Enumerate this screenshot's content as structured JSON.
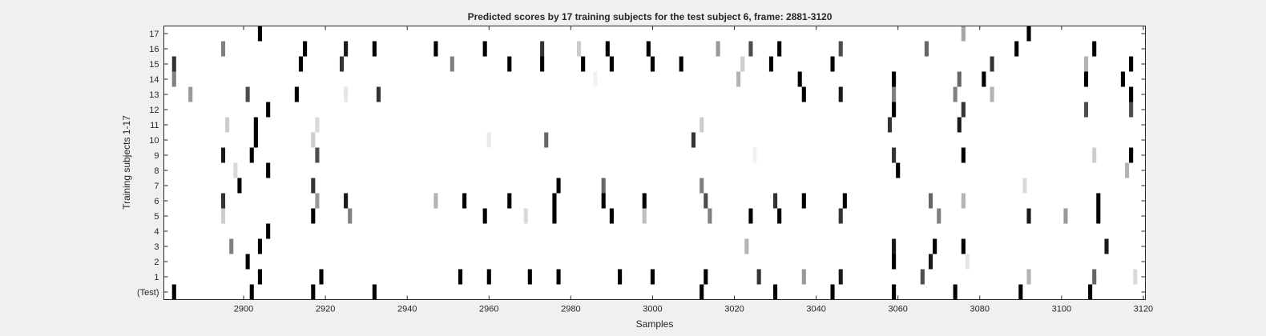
{
  "chart_data": {
    "type": "heatmap",
    "title": "Predicted scores by 17 training subjects for the test subject 6, frame: 2881-3120",
    "xlabel": "Samples",
    "ylabel": "Training subjects 1-17",
    "xlim": [
      2881,
      3120
    ],
    "x_ticks": [
      2900,
      2920,
      2940,
      2960,
      2980,
      3000,
      3020,
      3040,
      3060,
      3080,
      3100,
      3120
    ],
    "y_ticks": [
      "(Test)",
      "1",
      "2",
      "3",
      "4",
      "5",
      "6",
      "7",
      "8",
      "9",
      "10",
      "11",
      "12",
      "13",
      "14",
      "15",
      "16",
      "17"
    ],
    "colormap": "gray-inverted",
    "background_color": "#ffffff",
    "grid": false,
    "value_range": [
      0,
      1
    ],
    "rows": [
      {
        "label": "(Test)",
        "cells": [
          [
            2883,
            1.0
          ],
          [
            2902,
            1.0
          ],
          [
            2917,
            1.0
          ],
          [
            2932,
            1.0
          ],
          [
            3012,
            1.0
          ],
          [
            3030,
            1.0
          ],
          [
            3044,
            1.0
          ],
          [
            3059,
            1.0
          ],
          [
            3074,
            1.0
          ],
          [
            3090,
            1.0
          ],
          [
            3107,
            1.0
          ]
        ]
      },
      {
        "label": "1",
        "cells": [
          [
            2904,
            1.0
          ],
          [
            2919,
            1.0
          ],
          [
            2953,
            1.0
          ],
          [
            2960,
            1.0
          ],
          [
            2970,
            1.0
          ],
          [
            2977,
            1.0
          ],
          [
            2992,
            1.0
          ],
          [
            3000,
            1.0
          ],
          [
            3013,
            1.0
          ],
          [
            3026,
            0.8
          ],
          [
            3037,
            0.4
          ],
          [
            3046,
            0.9
          ],
          [
            3066,
            0.7
          ],
          [
            3092,
            0.3
          ],
          [
            3108,
            0.6
          ],
          [
            3118,
            0.15
          ]
        ]
      },
      {
        "label": "2",
        "cells": [
          [
            2901,
            1.0
          ],
          [
            3059,
            1.0
          ],
          [
            3068,
            0.9
          ],
          [
            3077,
            0.1
          ]
        ]
      },
      {
        "label": "3",
        "cells": [
          [
            2897,
            0.5
          ],
          [
            2904,
            1.0
          ],
          [
            3023,
            0.3
          ],
          [
            3059,
            0.9
          ],
          [
            3069,
            1.0
          ],
          [
            3076,
            1.0
          ],
          [
            3111,
            0.9
          ]
        ]
      },
      {
        "label": "4",
        "cells": [
          [
            2906,
            1.0
          ]
        ]
      },
      {
        "label": "5",
        "cells": [
          [
            2895,
            0.2
          ],
          [
            2917,
            1.0
          ],
          [
            2926,
            0.5
          ],
          [
            2959,
            1.0
          ],
          [
            2969,
            0.15
          ],
          [
            2976,
            1.0
          ],
          [
            2990,
            1.0
          ],
          [
            2998,
            0.25
          ],
          [
            3014,
            0.5
          ],
          [
            3024,
            1.0
          ],
          [
            3031,
            1.0
          ],
          [
            3046,
            0.8
          ],
          [
            3070,
            0.5
          ],
          [
            3092,
            0.9
          ],
          [
            3101,
            0.4
          ],
          [
            3109,
            1.0
          ]
        ]
      },
      {
        "label": "6",
        "cells": [
          [
            2895,
            0.8
          ],
          [
            2918,
            0.4
          ],
          [
            2925,
            0.9
          ],
          [
            2947,
            0.3
          ],
          [
            2954,
            1.0
          ],
          [
            2965,
            1.0
          ],
          [
            2976,
            1.0
          ],
          [
            2988,
            1.0
          ],
          [
            2998,
            1.0
          ],
          [
            3013,
            0.7
          ],
          [
            3030,
            0.8
          ],
          [
            3037,
            1.0
          ],
          [
            3047,
            1.0
          ],
          [
            3068,
            0.6
          ],
          [
            3076,
            0.3
          ],
          [
            3109,
            1.0
          ]
        ]
      },
      {
        "label": "7",
        "cells": [
          [
            2899,
            1.0
          ],
          [
            2917,
            0.8
          ],
          [
            2977,
            1.0
          ],
          [
            2988,
            0.6
          ],
          [
            3012,
            0.5
          ],
          [
            3091,
            0.15
          ]
        ]
      },
      {
        "label": "8",
        "cells": [
          [
            2898,
            0.15
          ],
          [
            2906,
            1.0
          ],
          [
            3060,
            1.0
          ],
          [
            3116,
            0.3
          ]
        ]
      },
      {
        "label": "9",
        "cells": [
          [
            2895,
            0.9
          ],
          [
            2902,
            1.0
          ],
          [
            2918,
            0.7
          ],
          [
            3025,
            0.05
          ],
          [
            3059,
            0.8
          ],
          [
            3076,
            1.0
          ],
          [
            3108,
            0.2
          ],
          [
            3117,
            1.0
          ]
        ]
      },
      {
        "label": "10",
        "cells": [
          [
            2903,
            1.0
          ],
          [
            2917,
            0.2
          ],
          [
            2960,
            0.08
          ],
          [
            2974,
            0.6
          ],
          [
            3010,
            0.8
          ]
        ]
      },
      {
        "label": "11",
        "cells": [
          [
            2896,
            0.2
          ],
          [
            2903,
            1.0
          ],
          [
            2918,
            0.15
          ],
          [
            3012,
            0.2
          ],
          [
            3058,
            0.8
          ],
          [
            3075,
            0.9
          ]
        ]
      },
      {
        "label": "12",
        "cells": [
          [
            2906,
            1.0
          ],
          [
            3059,
            1.0
          ],
          [
            3076,
            0.8
          ],
          [
            3106,
            0.7
          ],
          [
            3117,
            0.7
          ]
        ]
      },
      {
        "label": "13",
        "cells": [
          [
            2887,
            0.4
          ],
          [
            2901,
            0.7
          ],
          [
            2913,
            1.0
          ],
          [
            2925,
            0.1
          ],
          [
            2933,
            0.8
          ],
          [
            3037,
            1.0
          ],
          [
            3046,
            0.9
          ],
          [
            3059,
            0.5
          ],
          [
            3074,
            0.5
          ],
          [
            3083,
            0.3
          ],
          [
            3117,
            1.0
          ]
        ]
      },
      {
        "label": "14",
        "cells": [
          [
            2883,
            0.5
          ],
          [
            2986,
            0.05
          ],
          [
            3021,
            0.3
          ],
          [
            3036,
            1.0
          ],
          [
            3059,
            1.0
          ],
          [
            3075,
            0.6
          ],
          [
            3081,
            1.0
          ],
          [
            3106,
            1.0
          ],
          [
            3115,
            1.0
          ]
        ]
      },
      {
        "label": "15",
        "cells": [
          [
            2883,
            0.8
          ],
          [
            2914,
            1.0
          ],
          [
            2924,
            0.8
          ],
          [
            2951,
            0.5
          ],
          [
            2965,
            1.0
          ],
          [
            2973,
            1.0
          ],
          [
            2983,
            1.0
          ],
          [
            2990,
            1.0
          ],
          [
            3000,
            1.0
          ],
          [
            3007,
            1.0
          ],
          [
            3022,
            0.2
          ],
          [
            3029,
            1.0
          ],
          [
            3044,
            1.0
          ],
          [
            3083,
            0.8
          ],
          [
            3106,
            0.3
          ],
          [
            3117,
            1.0
          ]
        ]
      },
      {
        "label": "16",
        "cells": [
          [
            2895,
            0.5
          ],
          [
            2915,
            1.0
          ],
          [
            2925,
            0.9
          ],
          [
            2932,
            1.0
          ],
          [
            2947,
            1.0
          ],
          [
            2959,
            1.0
          ],
          [
            2973,
            0.8
          ],
          [
            2982,
            0.2
          ],
          [
            2989,
            1.0
          ],
          [
            2999,
            1.0
          ],
          [
            3016,
            0.4
          ],
          [
            3024,
            0.7
          ],
          [
            3031,
            1.0
          ],
          [
            3046,
            0.7
          ],
          [
            3067,
            0.6
          ],
          [
            3089,
            1.0
          ],
          [
            3108,
            1.0
          ]
        ]
      },
      {
        "label": "17",
        "cells": [
          [
            2904,
            1.0
          ],
          [
            3076,
            0.35
          ],
          [
            3092,
            1.0
          ]
        ]
      }
    ]
  }
}
